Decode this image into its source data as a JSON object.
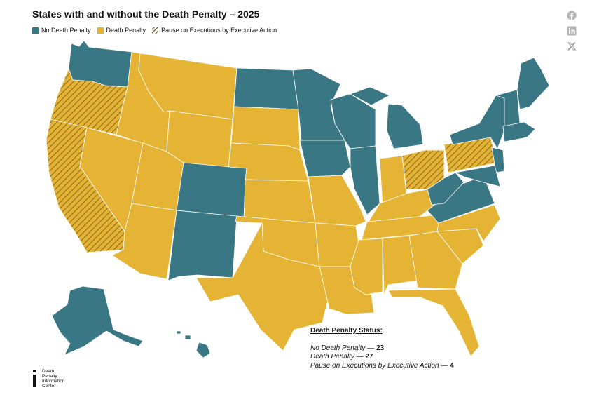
{
  "title": "States with and without the Death Penalty – 2025",
  "colors": {
    "no_death_penalty": "#3a7784",
    "death_penalty": "#e6b435",
    "pause_stripe": "#8a6a1f",
    "border": "#ffffff"
  },
  "legend": {
    "no_death_penalty": "No Death Penalty",
    "death_penalty": "Death Penalty",
    "pause": "Pause on Executions by Executive Action"
  },
  "status": {
    "heading": "Death Penalty Status:",
    "rows": [
      {
        "label": "No Death Penalty —",
        "count": "23"
      },
      {
        "label": "Death Penalty —",
        "count": "27"
      },
      {
        "label": "Pause on Executions by Executive Action —",
        "count": "4"
      }
    ]
  },
  "logo": {
    "lines": [
      "Death",
      "Penalty",
      "Information",
      "Center"
    ]
  },
  "share": [
    "facebook-icon",
    "linkedin-icon",
    "x-icon"
  ]
}
